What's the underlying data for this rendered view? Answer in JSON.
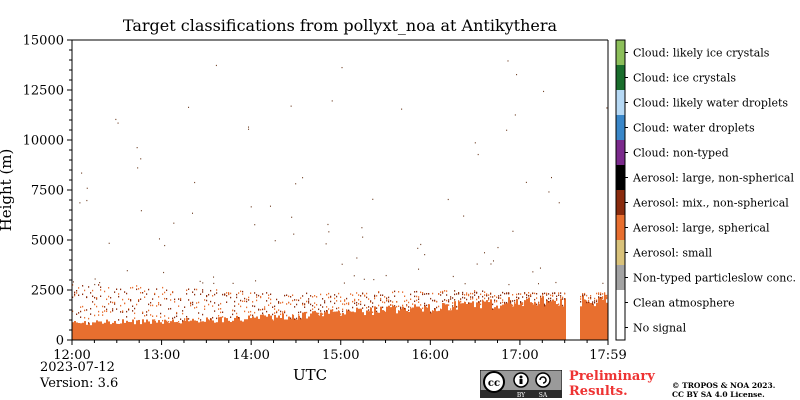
{
  "title": "Target classifications from pollyxt_noa at Antikythera",
  "date": "2023-07-12",
  "version": "Version: 3.6",
  "footer": {
    "license_badge_text": [
      "cc",
      "BY",
      "SA"
    ],
    "preliminary": [
      "Preliminary",
      "Results."
    ],
    "copyright": [
      "© TROPOS & NOA 2023.",
      "CC BY SA 4.0 License."
    ]
  },
  "colors": {
    "aerosol_large_spherical": "#e86f2f",
    "aerosol_mix_non_spherical": "#8a2b0d",
    "particle_scatter": "#6b3a1f",
    "badge_dark": "#2b2b2b",
    "preliminary_red": "#ee3333"
  },
  "chart_data": {
    "type": "heatmap",
    "title": "Target classifications from pollyxt_noa at Antikythera",
    "xlabel": "UTC",
    "ylabel": "Height (m)",
    "x_ticks": [
      "12:00",
      "13:00",
      "14:00",
      "15:00",
      "16:00",
      "17:00",
      "17:59"
    ],
    "y_ticks": [
      0,
      2500,
      5000,
      7500,
      10000,
      12500,
      15000
    ],
    "xlim": [
      "12:00",
      "17:59"
    ],
    "ylim": [
      0,
      15000
    ],
    "grid": false,
    "legend": {
      "placement": "right colorbar",
      "entries": [
        {
          "label": "Cloud: likely ice crystals",
          "color": "#8cbf5a"
        },
        {
          "label": "Cloud: ice crystals",
          "color": "#1a6e2d"
        },
        {
          "label": "Cloud: likely water droplets",
          "color": "#b6d9f5"
        },
        {
          "label": "Cloud: water droplets",
          "color": "#3a87c9"
        },
        {
          "label": "Cloud: non-typed",
          "color": "#7b2a8c"
        },
        {
          "label": "Aerosol: large, non-spherical",
          "color": "#000000"
        },
        {
          "label": "Aerosol: mix., non-spherical",
          "color": "#8a2b0d"
        },
        {
          "label": "Aerosol: large, spherical",
          "color": "#e86f2f"
        },
        {
          "label": "Aerosol: small",
          "color": "#d9c27a"
        },
        {
          "label": "Non-typed particleslow conc.",
          "color": "#a3a3a3"
        },
        {
          "label": "Clean atmosphere",
          "color": "#ffffff"
        },
        {
          "label": "No signal",
          "color": "#ffffff"
        }
      ]
    },
    "series": [
      {
        "class": "Aerosol: large, spherical",
        "layer_base_m": 0,
        "layer_top_m": [
          850,
          900,
          950,
          1000,
          1100,
          1200,
          1400,
          1500,
          1600,
          1800,
          1900,
          2000
        ],
        "x": [
          "12:00",
          "12:30",
          "13:00",
          "13:30",
          "14:00",
          "14:30",
          "15:00",
          "15:30",
          "16:00",
          "16:30",
          "17:00",
          "17:59"
        ]
      },
      {
        "class": "Aerosol: mix., non-spherical",
        "layer_top_m": [
          2800,
          2800,
          2700,
          2600,
          2500,
          2400,
          2400,
          2500,
          2500,
          2500,
          2400,
          2400
        ],
        "x": [
          "12:00",
          "12:30",
          "13:00",
          "13:30",
          "14:00",
          "14:30",
          "15:00",
          "15:30",
          "16:00",
          "16:30",
          "17:00",
          "17:59"
        ]
      }
    ],
    "data_gaps": [
      [
        "17:30",
        "17:40"
      ]
    ]
  }
}
